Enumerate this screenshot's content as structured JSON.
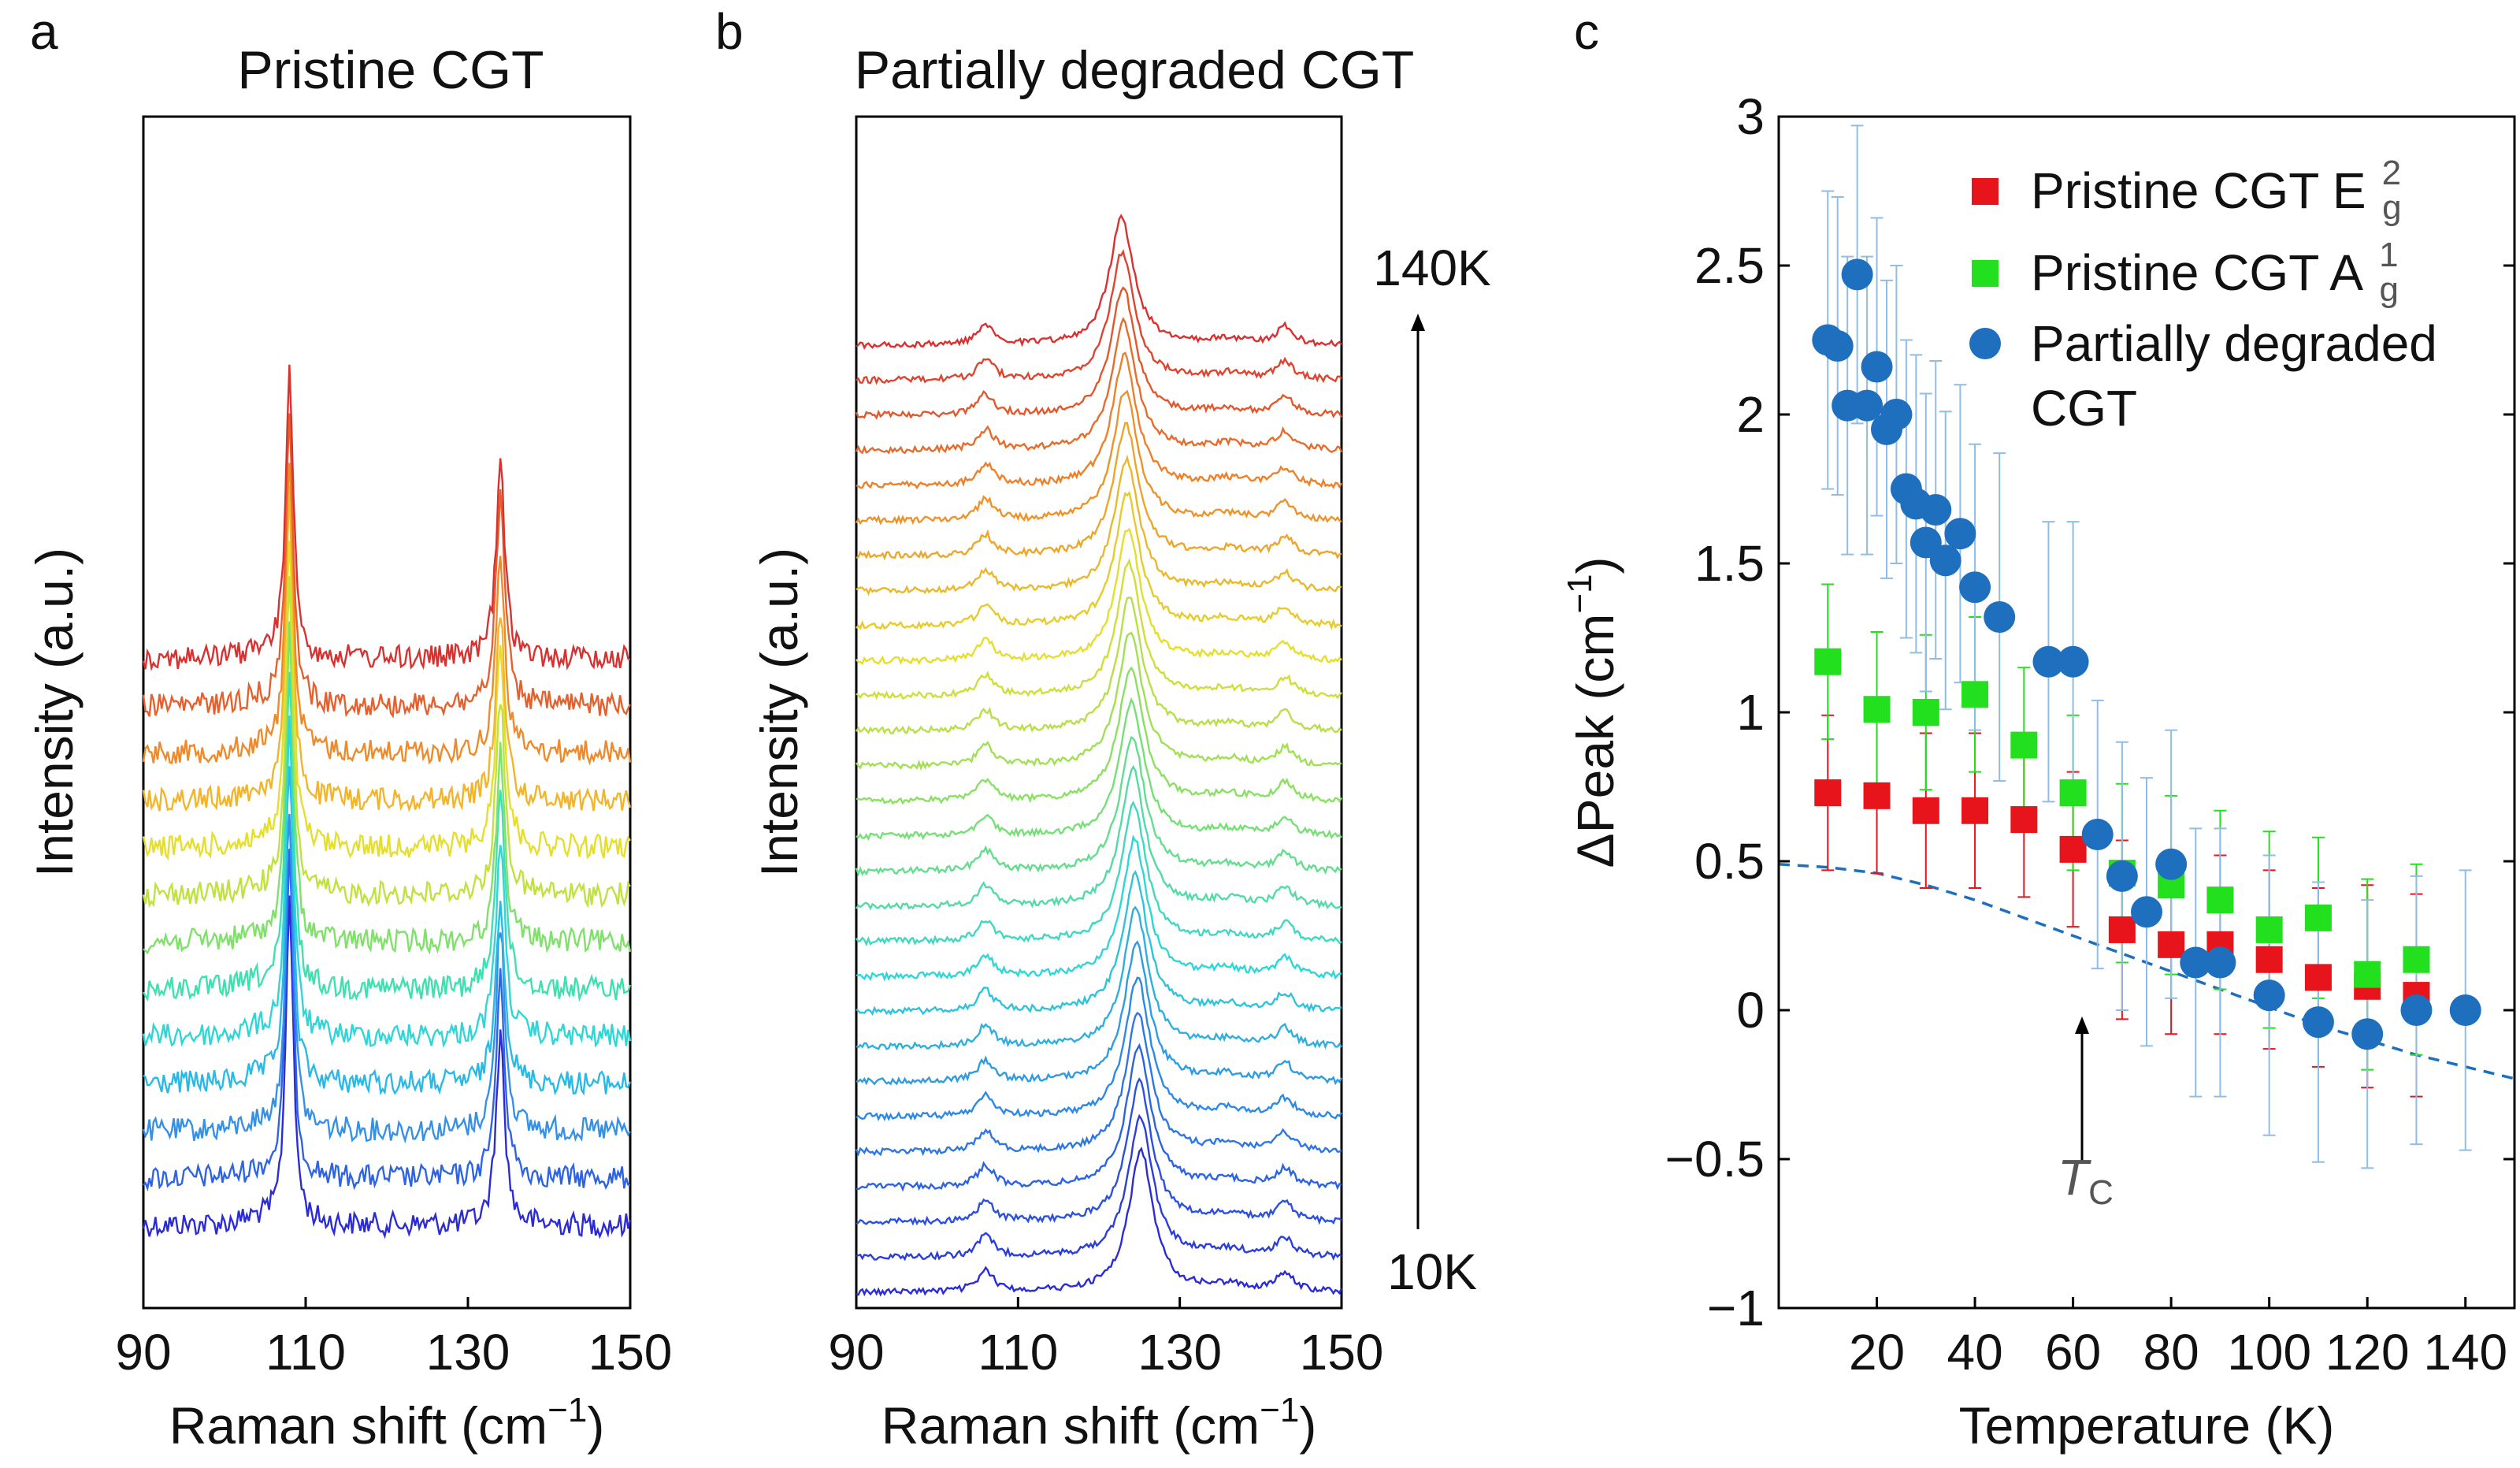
{
  "chart_data": [
    {
      "panel": "a",
      "type": "line",
      "title": "Pristine CGT",
      "xlabel": "Raman shift (cm",
      "xlabel_sup": "−1",
      "xlabel_end": ")",
      "ylabel": "Intensity (a.u.)",
      "xlim": [
        90,
        150
      ],
      "xticks": [
        "90",
        "110",
        "130",
        "150"
      ],
      "n_spectra": 13,
      "peaks_cm1": [
        108,
        134
      ],
      "series_colors": [
        "#2b2bd8",
        "#2d64e6",
        "#3591e8",
        "#29b9e6",
        "#2fd6d8",
        "#3fe0b0",
        "#7fe06a",
        "#bfe23c",
        "#e5de2c",
        "#f3b42a",
        "#ee8a2a",
        "#e6602e",
        "#d93030"
      ]
    },
    {
      "panel": "b",
      "type": "line",
      "title": "Partially degraded CGT",
      "xlabel": "Raman shift (cm",
      "xlabel_sup": "−1",
      "xlabel_end": ")",
      "ylabel": "Intensity (a.u.)",
      "xlim": [
        90,
        150
      ],
      "xticks": [
        "90",
        "110",
        "130",
        "150"
      ],
      "n_spectra": 28,
      "peaks_cm1": [
        106,
        124,
        143
      ],
      "temperature_low": "10K",
      "temperature_high": "140K",
      "color_low": "#2b2bd8",
      "color_high": "#d93030"
    },
    {
      "panel": "c",
      "type": "scatter",
      "xlabel": "Temperature (K)",
      "ylabel": "ΔPeak (cm",
      "ylabel_sup": "−1",
      "ylabel_end": ")",
      "xlim": [
        0,
        150
      ],
      "ylim": [
        -1,
        3
      ],
      "xticks": [
        20,
        40,
        60,
        80,
        100,
        120,
        140
      ],
      "yticks": [
        -1,
        -0.5,
        0,
        0.5,
        1,
        1.5,
        2,
        2.5,
        3
      ],
      "ytick_labels": [
        "−1",
        "−0.5",
        "0",
        "0.5",
        "1",
        "1.5",
        "2",
        "2.5",
        "3"
      ],
      "annotation": "T",
      "annotation_sub": "C",
      "annotation_x": 60,
      "series": [
        {
          "name": "Pristine CGT E",
          "sym_sup": "2",
          "sym_sub": "g",
          "color": "#e8141c",
          "marker": "square",
          "x": [
            10,
            20,
            30,
            40,
            50,
            60,
            70,
            80,
            90,
            100,
            110,
            120,
            130
          ],
          "y": [
            0.73,
            0.72,
            0.67,
            0.67,
            0.64,
            0.54,
            0.27,
            0.22,
            0.22,
            0.17,
            0.11,
            0.08,
            0.05
          ],
          "err": [
            0.26,
            0.26,
            0.26,
            0.26,
            0.26,
            0.26,
            0.3,
            0.3,
            0.3,
            0.3,
            0.3,
            0.34,
            0.34
          ]
        },
        {
          "name": "Pristine CGT A",
          "sym_sup": "1",
          "sym_sub": "g",
          "color": "#22e01e",
          "marker": "square",
          "x": [
            10,
            20,
            30,
            40,
            50,
            60,
            70,
            80,
            90,
            100,
            110,
            120,
            130
          ],
          "y": [
            1.17,
            1.01,
            1.0,
            1.06,
            0.89,
            0.73,
            0.46,
            0.42,
            0.37,
            0.27,
            0.31,
            0.12,
            0.17
          ],
          "err": [
            0.26,
            0.26,
            0.26,
            0.26,
            0.26,
            0.26,
            0.3,
            0.3,
            0.3,
            0.33,
            0.27,
            0.32,
            0.32
          ]
        },
        {
          "name": "Partially degraded",
          "name_line2": "CGT",
          "color": "#1f6fbf",
          "marker": "circle",
          "x": [
            10,
            12,
            14,
            16,
            18,
            20,
            22,
            24,
            26,
            28,
            30,
            32,
            34,
            37,
            40,
            45,
            55,
            60,
            65,
            70,
            75,
            80,
            85,
            90,
            100,
            110,
            120,
            130,
            140
          ],
          "y": [
            2.25,
            2.23,
            2.03,
            2.47,
            2.03,
            2.16,
            1.95,
            2.0,
            1.75,
            1.7,
            1.57,
            1.68,
            1.51,
            1.6,
            1.42,
            1.32,
            1.17,
            1.17,
            0.59,
            0.45,
            0.33,
            0.49,
            0.16,
            0.16,
            0.05,
            -0.04,
            -0.08,
            0.0,
            0.0
          ],
          "err": [
            0.5,
            0.5,
            0.5,
            0.5,
            0.5,
            0.5,
            0.5,
            0.5,
            0.5,
            0.5,
            0.5,
            0.5,
            0.5,
            0.5,
            0.48,
            0.55,
            0.47,
            0.47,
            0.45,
            0.45,
            0.45,
            0.45,
            0.45,
            0.45,
            0.47,
            0.47,
            0.45,
            0.45,
            0.47
          ]
        }
      ],
      "fit_curve": {
        "color": "#1f6fbf",
        "style": "dashed",
        "x": [
          0,
          10,
          20,
          30,
          40,
          50,
          60,
          70,
          80,
          90,
          100,
          110,
          120,
          130,
          140,
          150
        ],
        "y": [
          0.49,
          0.48,
          0.46,
          0.42,
          0.37,
          0.31,
          0.25,
          0.19,
          0.13,
          0.07,
          0.01,
          -0.05,
          -0.1,
          -0.15,
          -0.19,
          -0.23
        ]
      }
    }
  ]
}
